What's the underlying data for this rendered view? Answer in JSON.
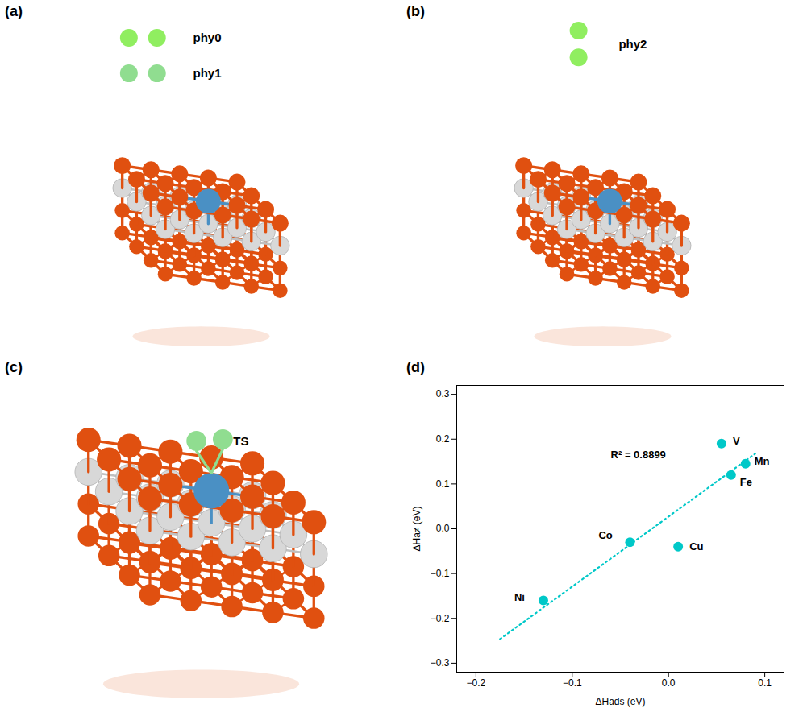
{
  "chart_data": [
    {
      "type": "diagram",
      "title": "(a)",
      "annotations": [
        "phy0",
        "phy1"
      ]
    },
    {
      "type": "diagram",
      "title": "(b)",
      "annotations": [
        "phy2"
      ]
    },
    {
      "type": "diagram",
      "title": "(c)",
      "annotations": [
        "TS"
      ]
    },
    {
      "type": "scatter",
      "title": "(d)",
      "x_label": "ΔHads (eV)",
      "y_label": "ΔHa≠ (eV)",
      "series": [
        {
          "type": "scatter",
          "color": "#00C8C8",
          "x": [
            -0.13,
            -0.04,
            0.01,
            0.065,
            0.08,
            0.055
          ],
          "values": [
            -0.16,
            -0.03,
            -0.04,
            0.12,
            0.145,
            0.19
          ],
          "labels": [
            "Ni",
            "Co",
            "Cu",
            "Fe",
            "Mn",
            "V"
          ]
        },
        {
          "type": "line",
          "line_style": "dotted",
          "color": "#00C8C8",
          "x": [
            -0.175,
            0.09
          ],
          "values": [
            -0.24622,
            0.16765
          ]
        }
      ],
      "annotations": [
        {
          "text": "R² = 0.8899",
          "x": -0.06,
          "y": 0.165
        }
      ],
      "xlim": [
        -0.22,
        0.12
      ],
      "ylim": [
        -0.32,
        0.32
      ],
      "xticks": [
        -0.2,
        -0.1,
        {
          "value": 0,
          "label": "0.0"
        },
        0.1
      ],
      "yticks": [
        -0.3,
        -0.2,
        -0.1,
        {
          "value": 0,
          "label": "0.0"
        },
        0.1,
        0.2,
        0.3
      ],
      "grid": false
    }
  ]
}
